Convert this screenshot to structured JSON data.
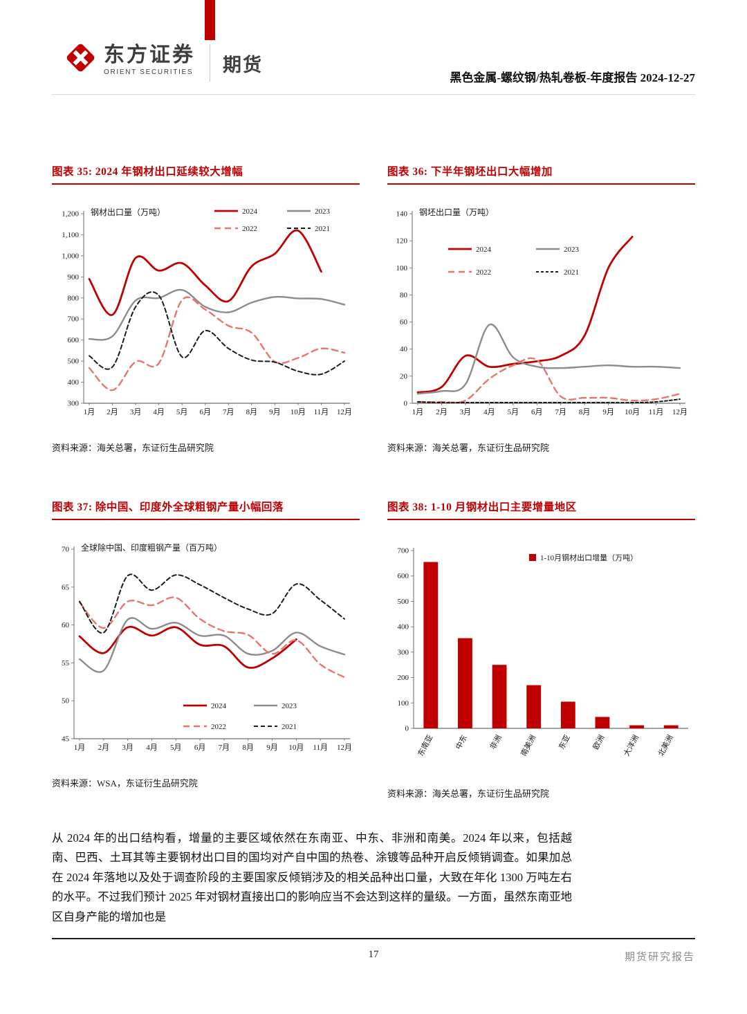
{
  "header": {
    "brand_cn": "东方证券",
    "brand_en": "ORIENT SECURITIES",
    "section_label": "期货",
    "report_title": "黑色金属-螺纹钢/热轧卷板-年度报告 2024-12-27"
  },
  "colors": {
    "accent_red": "#c00000"
  },
  "chart_data": [
    {
      "type": "line",
      "figure_title": "图表 35: 2024 年钢材出口延续较大增幅",
      "source": "资料来源：海关总署，东证衍生品研究院",
      "axis_label": "钢材出口量（万吨）",
      "categories": [
        "1月",
        "2月",
        "3月",
        "4月",
        "5月",
        "6月",
        "7月",
        "8月",
        "9月",
        "10月",
        "11月",
        "12月"
      ],
      "ylim": [
        300,
        1200
      ],
      "yticks": [
        300,
        400,
        500,
        600,
        700,
        800,
        900,
        1000,
        1100,
        1200
      ],
      "ytick_labels": [
        "300",
        "400",
        "500",
        "600",
        "700",
        "800",
        "900",
        "1,000",
        "1,100",
        "1,200"
      ],
      "series": [
        {
          "name": "2024",
          "color": "#c00000",
          "dash": null,
          "width": 2.8,
          "values": [
            890,
            720,
            990,
            930,
            965,
            860,
            785,
            950,
            1010,
            1120,
            925
          ]
        },
        {
          "name": "2023",
          "color": "#8c8c8c",
          "dash": null,
          "width": 2.4,
          "values": [
            605,
            618,
            788,
            800,
            838,
            758,
            732,
            778,
            805,
            798,
            795,
            768
          ]
        },
        {
          "name": "2022",
          "color": "#e8756b",
          "dash": "9,6",
          "width": 2.4,
          "values": [
            468,
            362,
            497,
            490,
            790,
            745,
            668,
            635,
            497,
            515,
            560,
            540
          ]
        },
        {
          "name": "2021",
          "color": "#1a1a1a",
          "dash": "6,4",
          "width": 2,
          "values": [
            525,
            472,
            758,
            812,
            520,
            645,
            560,
            505,
            495,
            452,
            438,
            500
          ]
        }
      ]
    },
    {
      "type": "line",
      "figure_title": "图表 36: 下半年钢坯出口大幅增加",
      "source": "资料来源：海关总署，东证衍生品研究院",
      "axis_label": "钢坯出口量（万吨）",
      "categories": [
        "1月",
        "2月",
        "3月",
        "4月",
        "5月",
        "6月",
        "7月",
        "8月",
        "9月",
        "10月",
        "11月",
        "12月"
      ],
      "ylim": [
        0,
        140
      ],
      "yticks": [
        0,
        20,
        40,
        60,
        80,
        100,
        120,
        140
      ],
      "series": [
        {
          "name": "2024",
          "color": "#c00000",
          "dash": null,
          "width": 2.8,
          "values": [
            8,
            12,
            35,
            27,
            29,
            31,
            35,
            50,
            100,
            123
          ]
        },
        {
          "name": "2023",
          "color": "#8c8c8c",
          "dash": null,
          "width": 2.4,
          "values": [
            7,
            9,
            14,
            58,
            34,
            27,
            26,
            27,
            28,
            27,
            27,
            26
          ]
        },
        {
          "name": "2022",
          "color": "#e8756b",
          "dash": "9,6",
          "width": 2.4,
          "values": [
            1,
            1,
            2,
            18,
            28,
            32,
            5,
            4,
            4,
            2,
            3,
            7
          ]
        },
        {
          "name": "2021",
          "color": "#1a1a1a",
          "dash": "4,3",
          "width": 2,
          "values": [
            1,
            0.5,
            0.5,
            0.5,
            0.5,
            0.5,
            0.5,
            0.5,
            0.5,
            0.5,
            1,
            3
          ]
        }
      ]
    },
    {
      "type": "line",
      "figure_title": "图表 37: 除中国、印度外全球粗钢产量小幅回落",
      "source": "资料来源：WSA，东证衍生品研究院",
      "axis_label": "全球除中国、印度粗钢产量（百万吨）",
      "categories": [
        "1月",
        "2月",
        "3月",
        "4月",
        "5月",
        "6月",
        "7月",
        "8月",
        "9月",
        "10月",
        "11月",
        "12月"
      ],
      "ylim": [
        45,
        70
      ],
      "yticks": [
        45,
        50,
        55,
        60,
        65,
        70
      ],
      "series": [
        {
          "name": "2024",
          "color": "#c00000",
          "dash": null,
          "width": 2.8,
          "values": [
            58.5,
            56.3,
            59.7,
            58.6,
            59.7,
            57.4,
            57.2,
            54.4,
            55.6,
            58.1
          ]
        },
        {
          "name": "2023",
          "color": "#8c8c8c",
          "dash": null,
          "width": 2.4,
          "values": [
            55.5,
            54.0,
            60.7,
            59.5,
            60.3,
            58.6,
            58.6,
            56.2,
            56.6,
            59.0,
            57.2,
            56.1
          ]
        },
        {
          "name": "2022",
          "color": "#e8756b",
          "dash": "9,6",
          "width": 2.4,
          "values": [
            63.0,
            59.6,
            63.1,
            62.6,
            63.6,
            60.8,
            59.2,
            58.7,
            56.2,
            58.0,
            54.8,
            53.1
          ]
        },
        {
          "name": "2021",
          "color": "#1a1a1a",
          "dash": "6,4",
          "width": 2,
          "values": [
            63.1,
            59.0,
            66.5,
            64.6,
            66.6,
            65.3,
            63.6,
            62.1,
            61.5,
            65.4,
            63.3,
            60.8
          ]
        }
      ]
    },
    {
      "type": "bar",
      "figure_title": "图表 38: 1-10 月钢材出口主要增量地区",
      "source": "资料来源：海关总署，东证衍生品研究院",
      "legend_label": "1-10月钢材出口增量（万吨）",
      "categories": [
        "东南亚",
        "中东",
        "非洲",
        "南美洲",
        "东亚",
        "欧洲",
        "大洋洲",
        "北美洲"
      ],
      "values": [
        655,
        355,
        250,
        170,
        105,
        45,
        12,
        12
      ],
      "ylim": [
        0,
        700
      ],
      "yticks": [
        0,
        100,
        200,
        300,
        400,
        500,
        600,
        700
      ],
      "bar_color": "#c00000"
    }
  ],
  "body_paragraph": "从 2024 年的出口结构看，增量的主要区域依然在东南亚、中东、非洲和南美。2024 年以来，包括越南、巴西、土耳其等主要钢材出口目的国均对产自中国的热卷、涂镀等品种开启反倾销调查。如果加总在 2024 年落地以及处于调查阶段的主要国家反倾销涉及的相关品种出口量，大致在年化 1300 万吨左右的水平。不过我们预计 2025 年对钢材直接出口的影响应当不会达到这样的量级。一方面，虽然东南亚地区自身产能的增加也是",
  "footer": {
    "page_number": "17",
    "label": "期货研究报告"
  }
}
